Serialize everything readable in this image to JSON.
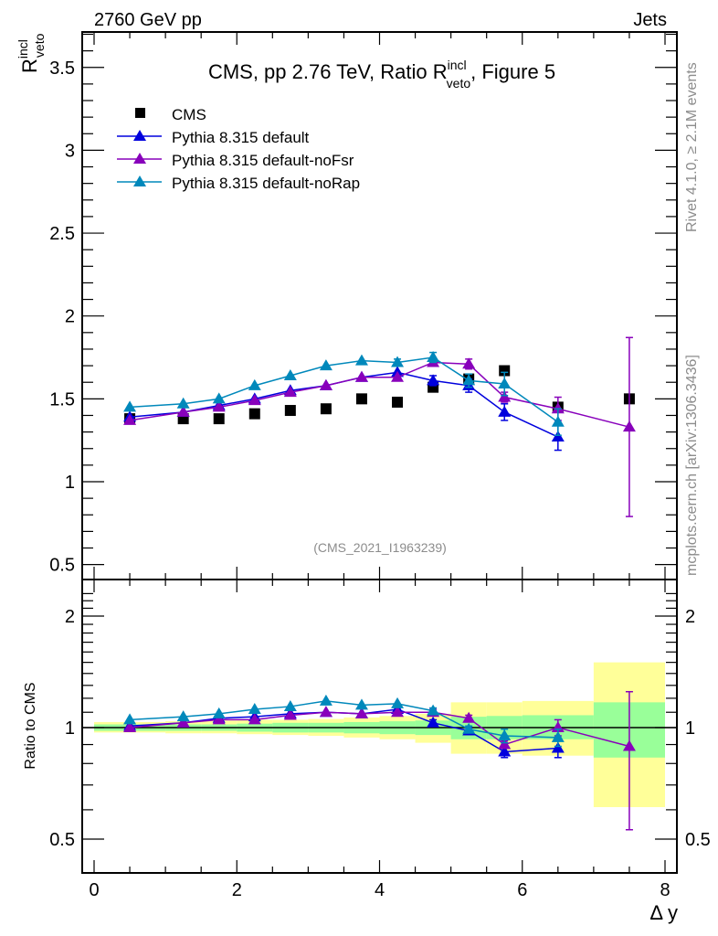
{
  "header": {
    "top_left": "2760 GeV pp",
    "top_right": "Jets",
    "side_rivet": "Rivet 4.1.0, ≥ 2.1M events",
    "side_mcplots": "mcplots.cern.ch [arXiv:1306.3436]",
    "analysis_id": "(CMS_2021_I1963239)"
  },
  "colors": {
    "cms": "#000000",
    "default": "#0000dd",
    "noFsr": "#8800bb",
    "noRap": "#0088bb",
    "band_inner": "#99ff99",
    "band_outer": "#ffff99"
  },
  "chart_data": [
    {
      "type": "scatter",
      "panel": "main",
      "title": "CMS, pp 2.76 TeV, Ratio R_veto^incl, Figure 5",
      "title_parts": {
        "prefix": "CMS, pp 2.76 TeV, Ratio R",
        "sup": "incl",
        "sub": "veto",
        "suffix": ", Figure 5"
      },
      "ylabel": {
        "main": "R",
        "sup": "incl",
        "sub": "veto"
      },
      "xlabel": "Δ y",
      "xlim": [
        -0.2,
        8.1
      ],
      "ylim": [
        0.4,
        3.7
      ],
      "yticks": [
        "0.5",
        "1",
        "1.5",
        "2",
        "2.5",
        "3",
        "3.5"
      ],
      "ytick_values": [
        0.5,
        1,
        1.5,
        2,
        2.5,
        3,
        3.5
      ],
      "legend_position": "top-left",
      "x": [
        0.5,
        1.25,
        1.75,
        2.25,
        2.75,
        3.25,
        3.75,
        4.25,
        4.75,
        5.25,
        5.75,
        6.5,
        7.5
      ],
      "x_edges": [
        0,
        1,
        1.5,
        2,
        2.5,
        3,
        3.5,
        4,
        4.5,
        5,
        5.5,
        6,
        7,
        8
      ],
      "series": [
        {
          "name": "CMS",
          "key": "cms",
          "marker": "square",
          "values": [
            1.38,
            1.38,
            1.38,
            1.41,
            1.43,
            1.44,
            1.5,
            1.48,
            1.57,
            1.62,
            1.67,
            1.45,
            1.5
          ],
          "errors": [
            0.01,
            0.01,
            0.01,
            0.01,
            0.01,
            0.01,
            0.01,
            0.01,
            0.01,
            0.01,
            0.01,
            0.01,
            0.01
          ]
        },
        {
          "name": "Pythia 8.315 default",
          "key": "default",
          "marker": "triangle",
          "values": [
            1.39,
            1.42,
            1.46,
            1.5,
            1.55,
            1.58,
            1.63,
            1.66,
            1.61,
            1.58,
            1.42,
            1.27,
            null
          ],
          "errors": [
            0.01,
            0.01,
            0.01,
            0.01,
            0.01,
            0.01,
            0.01,
            0.01,
            0.03,
            0.04,
            0.05,
            0.08,
            null
          ]
        },
        {
          "name": "Pythia 8.315 default-noFsr",
          "key": "noFsr",
          "marker": "triangle",
          "values": [
            1.37,
            1.42,
            1.45,
            1.49,
            1.54,
            1.58,
            1.63,
            1.63,
            1.72,
            1.71,
            1.51,
            1.44,
            1.33
          ],
          "errors": [
            0.01,
            0.01,
            0.01,
            0.01,
            0.01,
            0.01,
            0.01,
            0.01,
            0.02,
            0.03,
            0.03,
            0.07,
            0.54
          ]
        },
        {
          "name": "Pythia 8.315 default-noRap",
          "key": "noRap",
          "marker": "triangle",
          "values": [
            1.45,
            1.47,
            1.5,
            1.58,
            1.64,
            1.7,
            1.73,
            1.72,
            1.75,
            1.61,
            1.59,
            1.36,
            null
          ],
          "errors": [
            0.01,
            0.01,
            0.01,
            0.01,
            0.01,
            0.01,
            0.01,
            0.02,
            0.03,
            0.04,
            0.07,
            0.08,
            null
          ]
        }
      ]
    },
    {
      "type": "scatter",
      "panel": "ratio",
      "ylabel": "Ratio to CMS",
      "xlabel": "Δ y",
      "yscale": "log",
      "xlim": [
        -0.2,
        8.1
      ],
      "ylim": [
        0.42,
        2.4
      ],
      "yticks": [
        "0.5",
        "1",
        "2"
      ],
      "ytick_values": [
        0.5,
        1,
        2
      ],
      "xticks": [
        "0",
        "2",
        "4",
        "6",
        "8"
      ],
      "xtick_values": [
        0,
        2,
        4,
        6,
        8
      ],
      "x": [
        0.5,
        1.25,
        1.75,
        2.25,
        2.75,
        3.25,
        3.75,
        4.25,
        4.75,
        5.25,
        5.75,
        6.5,
        7.5
      ],
      "x_edges": [
        0,
        1,
        1.5,
        2,
        2.5,
        3,
        3.5,
        4,
        4.5,
        5,
        5.5,
        6,
        7,
        8
      ],
      "band_inner": [
        [
          0.98,
          1.02
        ],
        [
          0.98,
          1.02
        ],
        [
          0.98,
          1.02
        ],
        [
          0.975,
          1.025
        ],
        [
          0.97,
          1.03
        ],
        [
          0.97,
          1.03
        ],
        [
          0.965,
          1.035
        ],
        [
          0.96,
          1.04
        ],
        [
          0.955,
          1.045
        ],
        [
          0.93,
          1.07
        ],
        [
          0.93,
          1.075
        ],
        [
          0.93,
          1.08
        ],
        [
          0.83,
          1.17
        ]
      ],
      "band_outer": [
        [
          0.97,
          1.035
        ],
        [
          0.965,
          1.04
        ],
        [
          0.965,
          1.045
        ],
        [
          0.96,
          1.05
        ],
        [
          0.955,
          1.05
        ],
        [
          0.95,
          1.055
        ],
        [
          0.94,
          1.065
        ],
        [
          0.93,
          1.075
        ],
        [
          0.91,
          1.09
        ],
        [
          0.85,
          1.17
        ],
        [
          0.85,
          1.17
        ],
        [
          0.84,
          1.18
        ],
        [
          0.61,
          1.5
        ]
      ],
      "series": [
        {
          "name": "Pythia 8.315 default",
          "key": "default",
          "values": [
            1.01,
            1.03,
            1.06,
            1.07,
            1.09,
            1.1,
            1.09,
            1.12,
            1.03,
            0.98,
            0.86,
            0.88,
            null
          ],
          "errors": [
            0.01,
            0.01,
            0.01,
            0.01,
            0.01,
            0.01,
            0.01,
            0.01,
            0.02,
            0.02,
            0.03,
            0.05,
            null
          ]
        },
        {
          "name": "Pythia 8.315 default-noFsr",
          "key": "noFsr",
          "values": [
            1.0,
            1.03,
            1.05,
            1.05,
            1.08,
            1.1,
            1.09,
            1.1,
            1.1,
            1.06,
            0.9,
            1.0,
            0.89
          ],
          "errors": [
            0.01,
            0.01,
            0.01,
            0.01,
            0.01,
            0.01,
            0.01,
            0.01,
            0.02,
            0.02,
            0.02,
            0.05,
            0.36
          ]
        },
        {
          "name": "Pythia 8.315 default-noRap",
          "key": "noRap",
          "values": [
            1.05,
            1.07,
            1.09,
            1.12,
            1.14,
            1.18,
            1.15,
            1.16,
            1.11,
            0.99,
            0.95,
            0.94,
            null
          ],
          "errors": [
            0.01,
            0.01,
            0.01,
            0.01,
            0.01,
            0.01,
            0.01,
            0.01,
            0.02,
            0.02,
            0.04,
            0.05,
            null
          ]
        }
      ]
    }
  ]
}
